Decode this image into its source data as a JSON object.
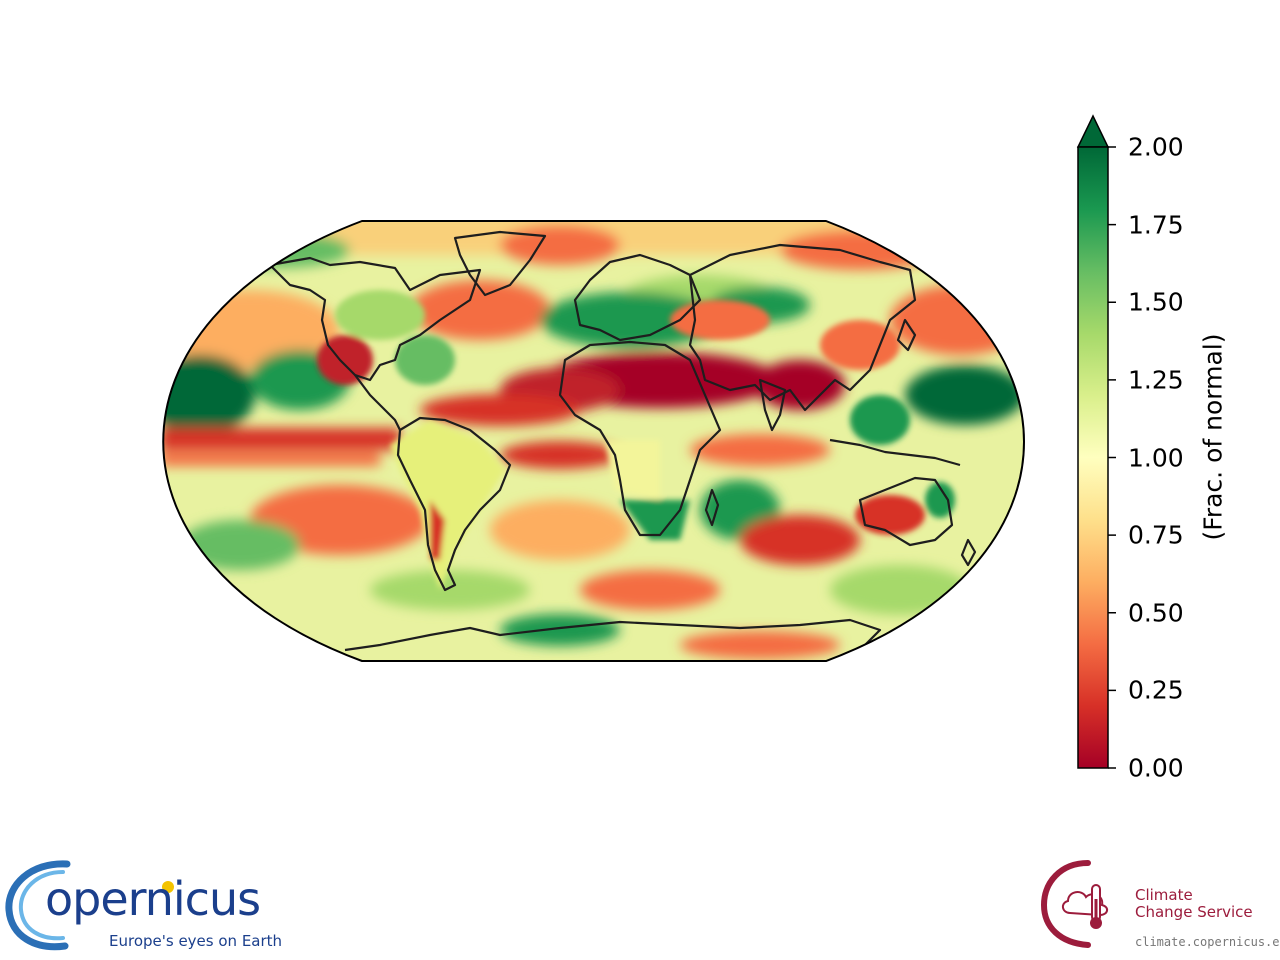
{
  "map": {
    "projection": "Robinson",
    "variable": "precipitation",
    "units": "(Frac. of normal)",
    "regions": {
      "Sahara and Arabian Peninsula": "0.00",
      "South Asia and Bay of Bengal": "0.00",
      "Equatorial Atlantic band": "0.25",
      "Eastern tropical Pacific band": "0.25",
      "Europe and Mediterranean": "2.00",
      "Western Pacific north of equator": "2.00",
      "Southern Africa and SW Indian Ocean": "2.00",
      "Central Pacific tropics": "2.00",
      "Antarctic Peninsula": "2.00",
      "Interior Australia": "0.25"
    }
  },
  "colorbar": {
    "colormap": "RdYlGn",
    "range": [
      0,
      2
    ],
    "extend": "max",
    "ticks": [
      "0.00",
      "0.25",
      "0.50",
      "0.75",
      "1.00",
      "1.25",
      "1.50",
      "1.75",
      "2.00"
    ],
    "label": "(Frac. of normal)",
    "colors": [
      "#a50026",
      "#d73027",
      "#f46d43",
      "#fdae61",
      "#fee08b",
      "#ffffbf",
      "#d9ef8b",
      "#a6d96a",
      "#66bd63",
      "#1a9850",
      "#006837"
    ]
  },
  "logos": {
    "copernicus": {
      "wordmark": "opernicus",
      "tagline": "Europe's eyes on Earth",
      "accent": "#f3c300",
      "color": "#1b3f8c"
    },
    "c3s": {
      "name_line1": "Climate",
      "name_line2": "Change Service",
      "url": "climate.copernicus.eu",
      "color": "#9c1c3c"
    }
  }
}
